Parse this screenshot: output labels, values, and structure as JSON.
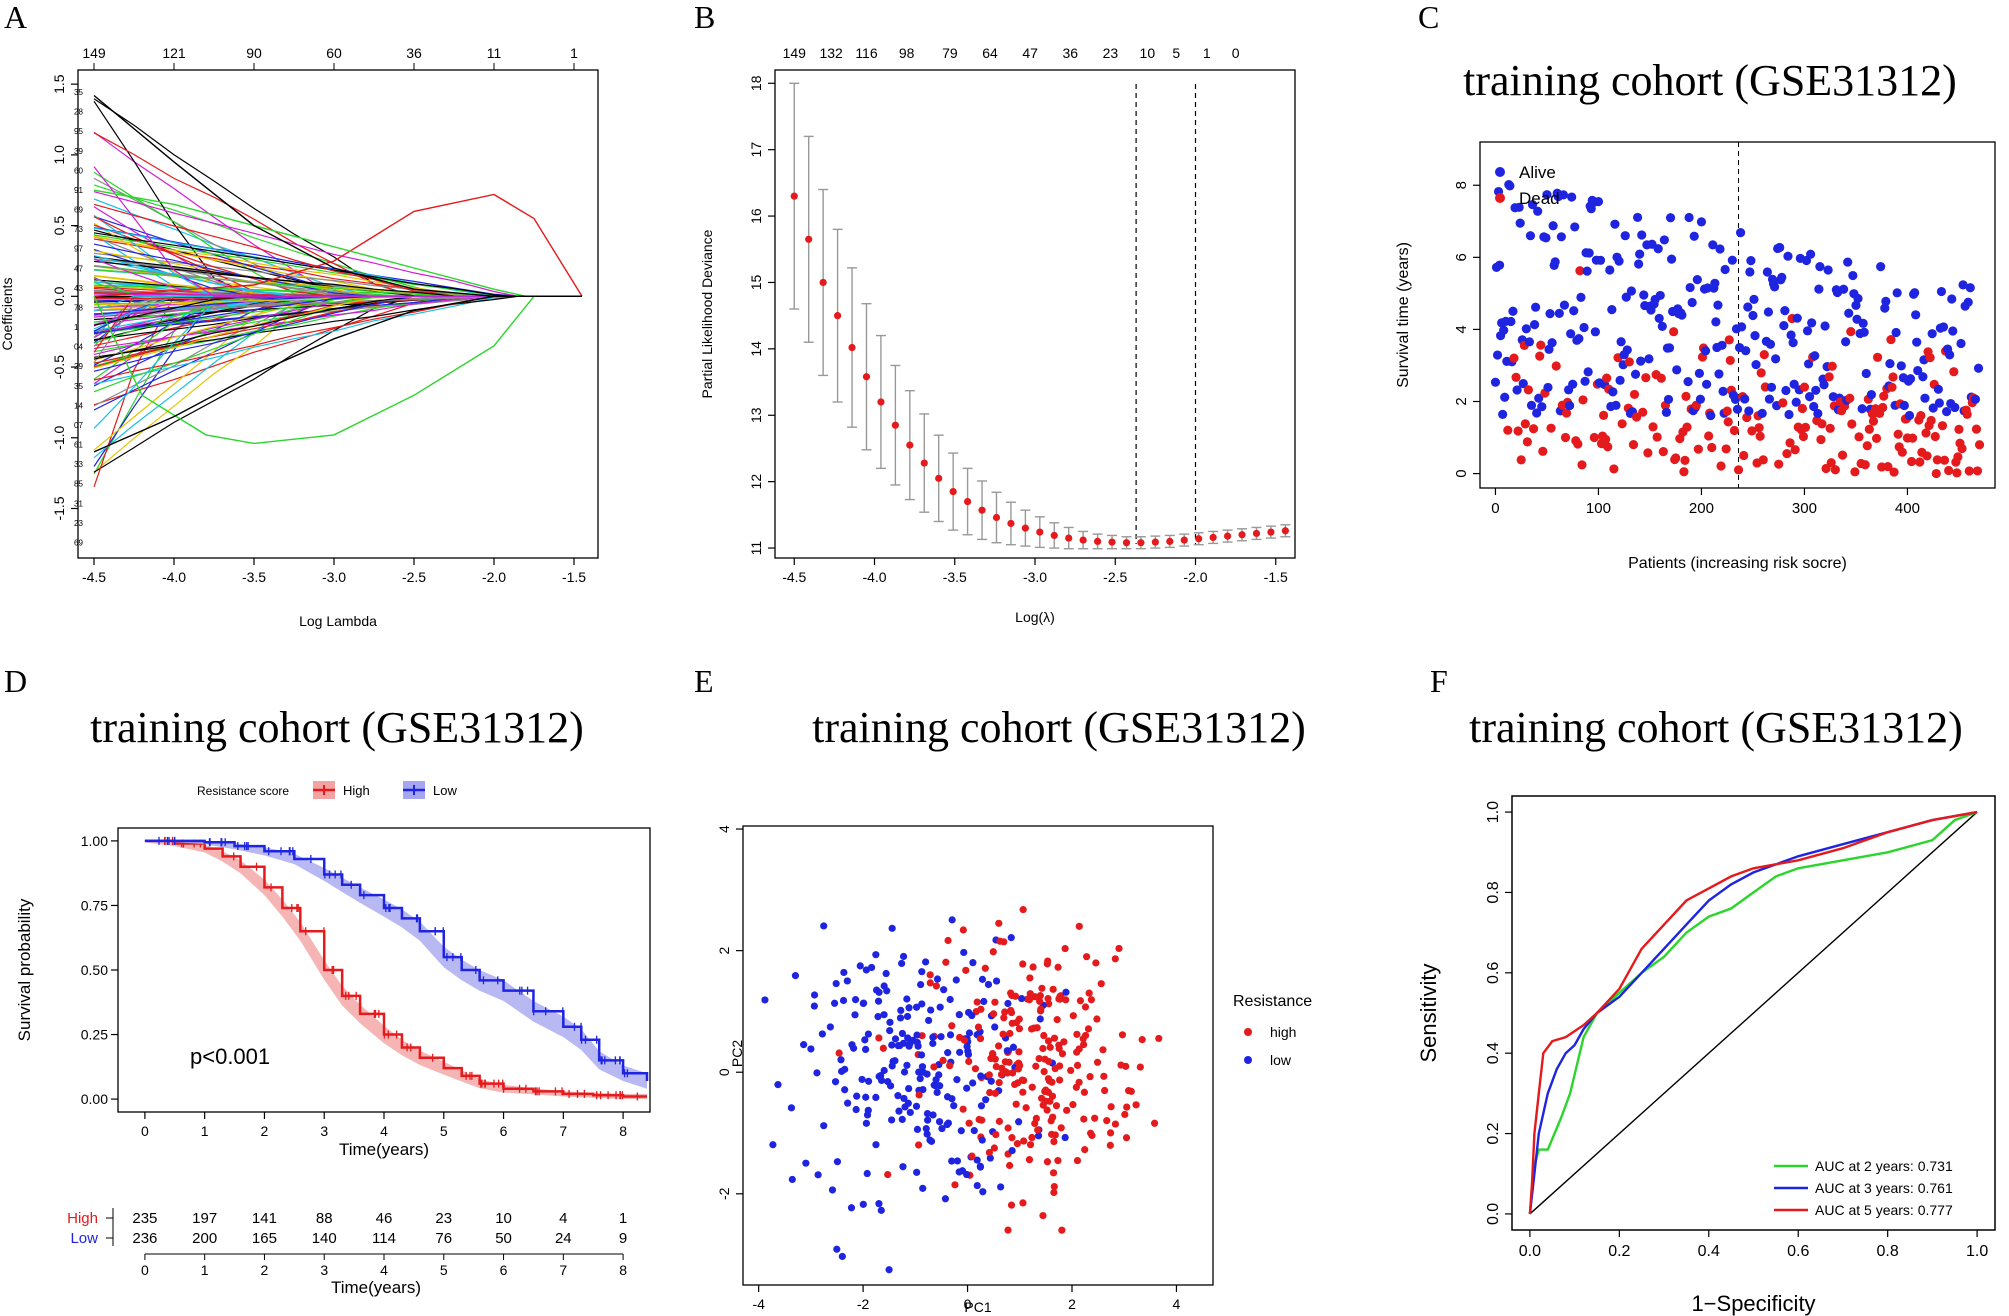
{
  "colors": {
    "red": "#e41a1c",
    "blue": "#1f24e0",
    "green": "#2bd52b",
    "grey": "#999999",
    "black": "#000000",
    "redFill": "#f4a3a3",
    "blueFill": "#a6a6f0"
  },
  "chart_data": [
    {
      "panel": "A",
      "type": "line",
      "title": "",
      "xlabel": "Log Lambda",
      "ylabel": "Coefficients",
      "xlim": [
        -4.6,
        -1.35
      ],
      "ylim": [
        -1.85,
        1.6
      ],
      "xticks": [
        "-4.5",
        "-4.0",
        "-3.5",
        "-3.0",
        "-2.5",
        "-2.0",
        "-1.5"
      ],
      "yticks": [
        "-1.5",
        "-1.0",
        "-0.5",
        "0.0",
        "0.5",
        "1.0",
        "1.5"
      ],
      "top_axis": [
        "149",
        "121",
        "90",
        "60",
        "36",
        "11",
        "1"
      ],
      "top_axis_x": [
        -4.5,
        -4.0,
        -3.5,
        -3.0,
        -2.5,
        -2.0,
        -1.5
      ],
      "left_labels": [
        "35",
        "28",
        "95",
        "39",
        "60",
        "91",
        "69",
        "73",
        "97",
        "47",
        "43",
        "78",
        "1",
        "04",
        "29",
        "35",
        "14",
        "07",
        "61",
        "33",
        "85",
        "31",
        "23",
        "69"
      ],
      "highlight_paths": [
        {
          "color": "#e41a1c",
          "x": [
            -4.5,
            -3.5,
            -3.0,
            -2.5,
            -2.0,
            -1.75,
            -1.45
          ],
          "y": [
            0,
            0.08,
            0.25,
            0.6,
            0.72,
            0.55,
            0
          ]
        },
        {
          "color": "#2bd52b",
          "x": [
            -4.5,
            -4.2,
            -3.8,
            -3.5,
            -3.0,
            -2.5,
            -2.0,
            -1.75,
            -1.45
          ],
          "y": [
            0,
            -0.7,
            -0.98,
            -1.04,
            -0.98,
            -0.7,
            -0.35,
            0,
            0
          ]
        },
        {
          "color": "#2bd52b",
          "x": [
            -4.5,
            -4.0,
            -3.5,
            -3.0,
            -2.5,
            -2.0,
            -1.8,
            -1.45
          ],
          "y": [
            0.75,
            0.65,
            0.5,
            0.35,
            0.2,
            0.05,
            0,
            0
          ]
        },
        {
          "color": "#000000",
          "x": [
            -4.5,
            -4.0,
            -3.5,
            -3.0,
            -2.5,
            -2.0,
            -1.7,
            -1.45
          ],
          "y": [
            1.42,
            0.95,
            0.5,
            0.2,
            0.05,
            0,
            0,
            0
          ]
        },
        {
          "color": "#000000",
          "x": [
            -4.5,
            -4.0,
            -3.5,
            -3.0,
            -2.5,
            -2.0,
            -1.7,
            -1.45
          ],
          "y": [
            -1.1,
            -0.85,
            -0.55,
            -0.3,
            -0.1,
            0,
            0,
            0
          ]
        }
      ]
    },
    {
      "panel": "B",
      "type": "scatter",
      "title": "",
      "xlabel": "Log(λ)",
      "ylabel": "Partial Likelihood Deviance",
      "xlim": [
        -4.62,
        -1.38
      ],
      "ylim": [
        10.85,
        18.2
      ],
      "xticks": [
        "-4.5",
        "-4.0",
        "-3.5",
        "-3.0",
        "-2.5",
        "-2.0",
        "-1.5"
      ],
      "yticks": [
        "11",
        "12",
        "13",
        "14",
        "15",
        "16",
        "17",
        "18"
      ],
      "top_axis": [
        "149",
        "132",
        "116",
        "98",
        "79",
        "64",
        "47",
        "36",
        "23",
        "10",
        "5",
        "1",
        "0"
      ],
      "top_axis_x": [
        -4.5,
        -4.27,
        -4.05,
        -3.8,
        -3.53,
        -3.28,
        -3.03,
        -2.78,
        -2.53,
        -2.3,
        -2.12,
        -1.93,
        -1.75
      ],
      "vlines": [
        -2.37,
        -2.0
      ],
      "points": {
        "x": [
          -4.5,
          -4.41,
          -4.32,
          -4.23,
          -4.14,
          -4.05,
          -3.96,
          -3.87,
          -3.78,
          -3.69,
          -3.6,
          -3.51,
          -3.42,
          -3.33,
          -3.24,
          -3.15,
          -3.06,
          -2.97,
          -2.88,
          -2.79,
          -2.7,
          -2.61,
          -2.52,
          -2.43,
          -2.34,
          -2.25,
          -2.16,
          -2.07,
          -1.98,
          -1.89,
          -1.8,
          -1.71,
          -1.62,
          -1.53,
          -1.44
        ],
        "y": [
          16.3,
          15.65,
          15.0,
          14.5,
          14.02,
          13.58,
          13.2,
          12.85,
          12.55,
          12.28,
          12.05,
          11.85,
          11.7,
          11.57,
          11.46,
          11.37,
          11.3,
          11.24,
          11.19,
          11.15,
          11.12,
          11.1,
          11.09,
          11.08,
          11.08,
          11.09,
          11.1,
          11.12,
          11.14,
          11.16,
          11.18,
          11.2,
          11.22,
          11.24,
          11.26
        ],
        "err": [
          1.7,
          1.55,
          1.4,
          1.3,
          1.2,
          1.1,
          1.0,
          0.9,
          0.82,
          0.74,
          0.65,
          0.58,
          0.5,
          0.44,
          0.38,
          0.32,
          0.27,
          0.23,
          0.19,
          0.16,
          0.13,
          0.11,
          0.1,
          0.09,
          0.09,
          0.09,
          0.09,
          0.09,
          0.09,
          0.09,
          0.09,
          0.09,
          0.09,
          0.09,
          0.09
        ]
      }
    },
    {
      "panel": "C",
      "type": "scatter",
      "title": "training cohort (GSE31312)",
      "xlabel": "Patients (increasing risk socre)",
      "ylabel": "Survival time (years)",
      "xlim": [
        -15,
        485
      ],
      "ylim": [
        -0.4,
        9.2
      ],
      "xticks": [
        "0",
        "100",
        "200",
        "300",
        "400"
      ],
      "yticks": [
        "0",
        "2",
        "4",
        "6",
        "8"
      ],
      "vline": 236,
      "legend": [
        "Alive",
        "Dead"
      ],
      "legend_position": "top-left",
      "n_points": 471
    },
    {
      "panel": "D",
      "type": "line",
      "title": "training cohort (GSE31312)",
      "xlabel": "Time(years)",
      "ylabel": "Survival probability",
      "xlim": [
        -0.45,
        8.45
      ],
      "ylim": [
        -0.05,
        1.05
      ],
      "xticks": [
        "0",
        "1",
        "2",
        "3",
        "4",
        "5",
        "6",
        "7",
        "8"
      ],
      "yticks": [
        "0.00",
        "0.25",
        "0.50",
        "0.75",
        "1.00"
      ],
      "legend_title": "Resistance score",
      "legend_position": "top",
      "pvalue": "p<0.001",
      "series": [
        {
          "name": "High",
          "x": [
            0,
            0.5,
            1,
            1.3,
            1.6,
            2,
            2.3,
            2.6,
            3,
            3.3,
            3.6,
            4,
            4.3,
            4.6,
            5,
            5.3,
            5.6,
            6,
            6.5,
            7,
            7.5,
            8,
            8.4
          ],
          "values": [
            1.0,
            0.99,
            0.97,
            0.94,
            0.9,
            0.82,
            0.74,
            0.65,
            0.5,
            0.4,
            0.33,
            0.25,
            0.2,
            0.16,
            0.12,
            0.09,
            0.06,
            0.04,
            0.03,
            0.02,
            0.015,
            0.01,
            0.01
          ],
          "ci": [
            0.005,
            0.01,
            0.015,
            0.02,
            0.025,
            0.03,
            0.033,
            0.036,
            0.038,
            0.038,
            0.036,
            0.034,
            0.03,
            0.028,
            0.025,
            0.022,
            0.018,
            0.015,
            0.012,
            0.01,
            0.01,
            0.01,
            0.01
          ]
        },
        {
          "name": "Low",
          "x": [
            0,
            0.5,
            1,
            1.5,
            2,
            2.5,
            3,
            3.3,
            3.6,
            4,
            4.3,
            4.6,
            5,
            5.3,
            5.6,
            6,
            6.5,
            7,
            7.3,
            7.6,
            8,
            8.4
          ],
          "values": [
            1.0,
            1.0,
            0.995,
            0.98,
            0.96,
            0.93,
            0.87,
            0.83,
            0.79,
            0.74,
            0.7,
            0.65,
            0.55,
            0.5,
            0.46,
            0.42,
            0.34,
            0.28,
            0.23,
            0.15,
            0.1,
            0.07
          ],
          "ci": [
            0.005,
            0.005,
            0.008,
            0.012,
            0.016,
            0.02,
            0.025,
            0.028,
            0.03,
            0.033,
            0.035,
            0.037,
            0.04,
            0.04,
            0.04,
            0.04,
            0.04,
            0.04,
            0.04,
            0.035,
            0.03,
            0.03
          ]
        }
      ],
      "risk_table": {
        "xlabel": "Time(years)",
        "rows": [
          {
            "name": "High",
            "values": [
              "235",
              "197",
              "141",
              "88",
              "46",
              "23",
              "10",
              "4",
              "1"
            ]
          },
          {
            "name": "Low",
            "values": [
              "236",
              "200",
              "165",
              "140",
              "114",
              "76",
              "50",
              "24",
              "9"
            ]
          }
        ]
      }
    },
    {
      "panel": "E",
      "type": "scatter",
      "title": "training cohort (GSE31312)",
      "xlabel": "PC1",
      "ylabel": "PC2",
      "xlim": [
        -4.3,
        4.7
      ],
      "ylim": [
        -3.5,
        4.05
      ],
      "xticks": [
        "-4",
        "-2",
        "0",
        "2",
        "4"
      ],
      "yticks": [
        "-2",
        "0",
        "2",
        "4"
      ],
      "legend_title": "Resistance",
      "legend": [
        "high",
        "low"
      ],
      "legend_position": "right",
      "n_points": 470
    },
    {
      "panel": "F",
      "type": "line",
      "title": "training cohort (GSE31312)",
      "xlabel": "1−Specificity",
      "ylabel": "Sensitivity",
      "xlim": [
        -0.04,
        1.04
      ],
      "ylim": [
        -0.04,
        1.04
      ],
      "xticks": [
        "0.0",
        "0.2",
        "0.4",
        "0.6",
        "0.8",
        "1.0"
      ],
      "yticks": [
        "0.0",
        "0.2",
        "0.4",
        "0.6",
        "0.8",
        "1.0"
      ],
      "legend_position": "bottom-right",
      "series": [
        {
          "name": "AUC at 2 years: 0.731",
          "color": "#2bd52b",
          "x": [
            0,
            0.01,
            0.02,
            0.04,
            0.07,
            0.09,
            0.12,
            0.15,
            0.2,
            0.25,
            0.3,
            0.35,
            0.4,
            0.45,
            0.5,
            0.55,
            0.6,
            0.7,
            0.8,
            0.9,
            0.95,
            1.0
          ],
          "y": [
            0,
            0.12,
            0.16,
            0.16,
            0.24,
            0.3,
            0.44,
            0.5,
            0.55,
            0.6,
            0.64,
            0.7,
            0.74,
            0.76,
            0.8,
            0.84,
            0.86,
            0.88,
            0.9,
            0.93,
            0.98,
            1.0
          ]
        },
        {
          "name": "AUC at 3 years: 0.761",
          "color": "#1f24e0",
          "x": [
            0,
            0.01,
            0.02,
            0.04,
            0.06,
            0.08,
            0.1,
            0.12,
            0.15,
            0.2,
            0.25,
            0.3,
            0.35,
            0.4,
            0.45,
            0.5,
            0.6,
            0.7,
            0.8,
            0.9,
            1.0
          ],
          "y": [
            0,
            0.1,
            0.2,
            0.3,
            0.36,
            0.4,
            0.42,
            0.46,
            0.5,
            0.54,
            0.6,
            0.66,
            0.72,
            0.78,
            0.82,
            0.85,
            0.89,
            0.92,
            0.95,
            0.98,
            1.0
          ]
        },
        {
          "name": "AUC at 5 years: 0.777",
          "color": "#e41a1c",
          "x": [
            0,
            0.005,
            0.01,
            0.02,
            0.03,
            0.05,
            0.08,
            0.12,
            0.15,
            0.2,
            0.25,
            0.3,
            0.35,
            0.4,
            0.45,
            0.5,
            0.6,
            0.7,
            0.8,
            0.9,
            0.95,
            1.0
          ],
          "y": [
            0,
            0.08,
            0.2,
            0.3,
            0.4,
            0.43,
            0.44,
            0.47,
            0.5,
            0.56,
            0.66,
            0.72,
            0.78,
            0.81,
            0.84,
            0.86,
            0.88,
            0.91,
            0.95,
            0.98,
            0.99,
            1.0
          ]
        }
      ]
    }
  ]
}
